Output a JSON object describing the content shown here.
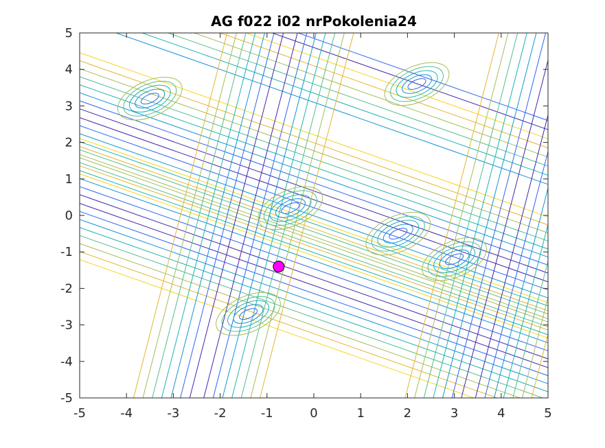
{
  "chart_data": {
    "type": "contour",
    "title": "AG f022 i02 nrPokolenia24",
    "xlabel": "",
    "ylabel": "",
    "xlim": [
      -5,
      5
    ],
    "ylim": [
      -5,
      5
    ],
    "x_ticks": [
      "-5",
      "-4",
      "-3",
      "-2",
      "-1",
      "0",
      "1",
      "2",
      "3",
      "4",
      "5"
    ],
    "y_ticks": [
      "5",
      "4",
      "3",
      "2",
      "1",
      "0",
      "-1",
      "-2",
      "-3",
      "-4",
      "-5"
    ],
    "grid": false,
    "legend": "none",
    "colormap": [
      "#3e26a8",
      "#2c64f0",
      "#0f93d4",
      "#19b3b0",
      "#52bd8a",
      "#a3bd56",
      "#e5b42e",
      "#f8d31b"
    ],
    "contour_families": [
      {
        "name": "diagonal-band-upper",
        "direction": [
          -0.45,
          1
        ],
        "center_line": {
          "point": [
            0,
            0.55
          ]
        }
      },
      {
        "name": "diagonal-band-lower",
        "direction": [
          -0.45,
          1
        ],
        "center_line": {
          "point": [
            0,
            -1.8
          ]
        }
      }
    ],
    "marker": {
      "x": -0.75,
      "y": -1.4,
      "color": "#ff00ff",
      "edge": "#000000",
      "shape": "circle"
    }
  }
}
